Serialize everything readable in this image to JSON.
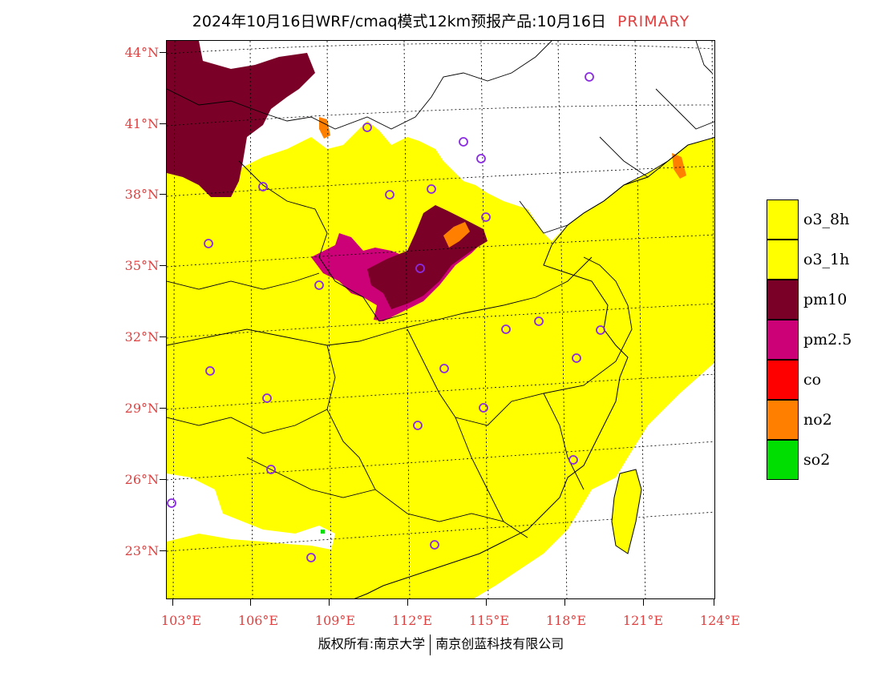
{
  "title": {
    "text": "2024年10月16日WRF/cmaq模式12km预报产品:10月16日",
    "tag": "PRIMARY"
  },
  "axes": {
    "lat_labels": [
      "44°N",
      "41°N",
      "38°N",
      "35°N",
      "32°N",
      "29°N",
      "26°N",
      "23°N"
    ],
    "lon_labels": [
      "103°E",
      "106°E",
      "109°E",
      "112°E",
      "115°E",
      "118°E",
      "121°E",
      "124°E"
    ]
  },
  "legend": {
    "items": [
      {
        "label": "o3_8h",
        "color": "#ffff00"
      },
      {
        "label": "o3_1h",
        "color": "#ffff00"
      },
      {
        "label": "pm10",
        "color": "#7a0028"
      },
      {
        "label": "pm2.5",
        "color": "#cc0077"
      },
      {
        "label": "co",
        "color": "#ff0000"
      },
      {
        "label": "no2",
        "color": "#ff7f00"
      },
      {
        "label": "so2",
        "color": "#00dd00"
      }
    ]
  },
  "copyright": {
    "left": "版权所有:南京大学",
    "right": "南京创蓝科技有限公司"
  }
}
